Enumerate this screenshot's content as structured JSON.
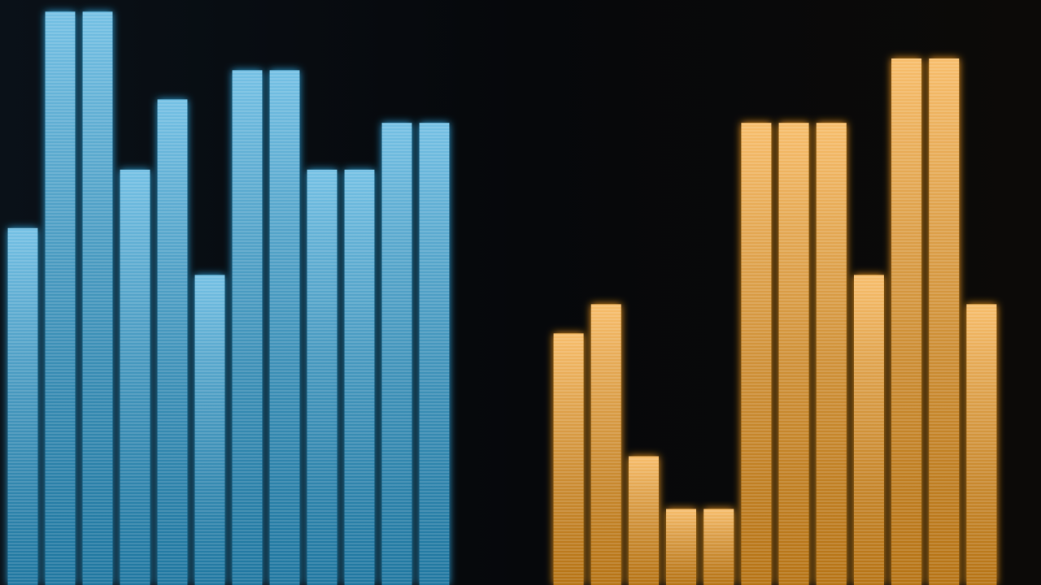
{
  "chart_data": [
    {
      "type": "bar",
      "color": "#2a9fd6",
      "categories": [
        null,
        null,
        null,
        null,
        null,
        null,
        null,
        null,
        null,
        null,
        null,
        null
      ],
      "values": [
        61,
        98,
        98,
        71,
        83,
        53,
        88,
        88,
        71,
        71,
        79,
        79
      ],
      "ylim": [
        0,
        100
      ]
    },
    {
      "type": "bar",
      "color": "#f39a1e",
      "categories": [
        null,
        null,
        null,
        null,
        null,
        null,
        null,
        null,
        null,
        null,
        null,
        null
      ],
      "values": [
        43,
        48,
        22,
        13,
        13,
        79,
        79,
        79,
        53,
        90,
        90,
        48
      ],
      "ylim": [
        0,
        100
      ]
    }
  ]
}
